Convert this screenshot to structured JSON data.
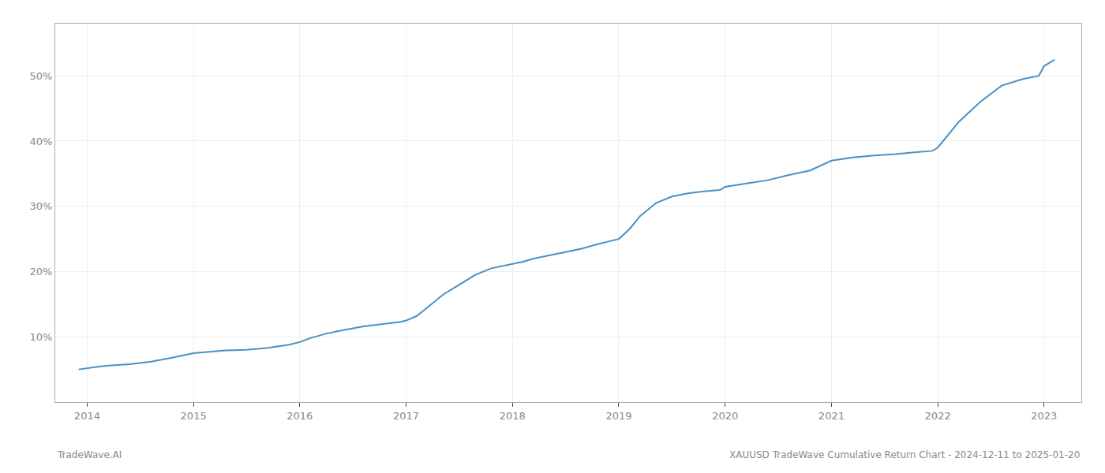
{
  "chart_data": {
    "type": "line",
    "title": "XAUUSD TradeWave Cumulative Return Chart - 2024-12-11 to 2025-01-20",
    "annotations": [
      "TradeWave.AI"
    ],
    "color": "#4a90c4",
    "grid": true,
    "x": [
      2013.92,
      2014.0,
      2014.1,
      2014.2,
      2014.4,
      2014.6,
      2014.8,
      2015.0,
      2015.15,
      2015.3,
      2015.5,
      2015.7,
      2015.9,
      2016.0,
      2016.1,
      2016.25,
      2016.4,
      2016.6,
      2016.8,
      2016.95,
      2017.0,
      2017.1,
      2017.2,
      2017.35,
      2017.5,
      2017.65,
      2017.8,
      2017.95,
      2018.0,
      2018.1,
      2018.2,
      2018.35,
      2018.5,
      2018.65,
      2018.8,
      2018.95,
      2019.0,
      2019.1,
      2019.2,
      2019.35,
      2019.5,
      2019.65,
      2019.8,
      2019.95,
      2020.0,
      2020.2,
      2020.4,
      2020.6,
      2020.8,
      2021.0,
      2021.2,
      2021.4,
      2021.6,
      2021.8,
      2021.95,
      2022.0,
      2022.05,
      2022.2,
      2022.4,
      2022.6,
      2022.8,
      2022.95,
      2023.0,
      2023.1
    ],
    "values": [
      5.0,
      5.2,
      5.4,
      5.6,
      5.8,
      6.2,
      6.8,
      7.5,
      7.7,
      7.9,
      8.0,
      8.3,
      8.8,
      9.2,
      9.8,
      10.5,
      11.0,
      11.6,
      12.0,
      12.3,
      12.5,
      13.2,
      14.5,
      16.5,
      18.0,
      19.5,
      20.5,
      21.0,
      21.2,
      21.5,
      22.0,
      22.5,
      23.0,
      23.5,
      24.2,
      24.8,
      25.0,
      26.5,
      28.5,
      30.5,
      31.5,
      32.0,
      32.3,
      32.5,
      33.0,
      33.5,
      34.0,
      34.8,
      35.5,
      37.0,
      37.5,
      37.8,
      38.0,
      38.3,
      38.5,
      39.0,
      40.0,
      43.0,
      46.0,
      48.5,
      49.5,
      50.0,
      51.5,
      52.5
    ],
    "xlim": [
      2013.7,
      2023.35
    ],
    "ylim": [
      0,
      58
    ],
    "xticks": [
      2014,
      2015,
      2016,
      2017,
      2018,
      2019,
      2020,
      2021,
      2022,
      2023
    ],
    "yticks": [
      {
        "value": 10,
        "label": "10%"
      },
      {
        "value": 20,
        "label": "20%"
      },
      {
        "value": 30,
        "label": "30%"
      },
      {
        "value": 40,
        "label": "40%"
      },
      {
        "value": 50,
        "label": "50%"
      }
    ]
  }
}
